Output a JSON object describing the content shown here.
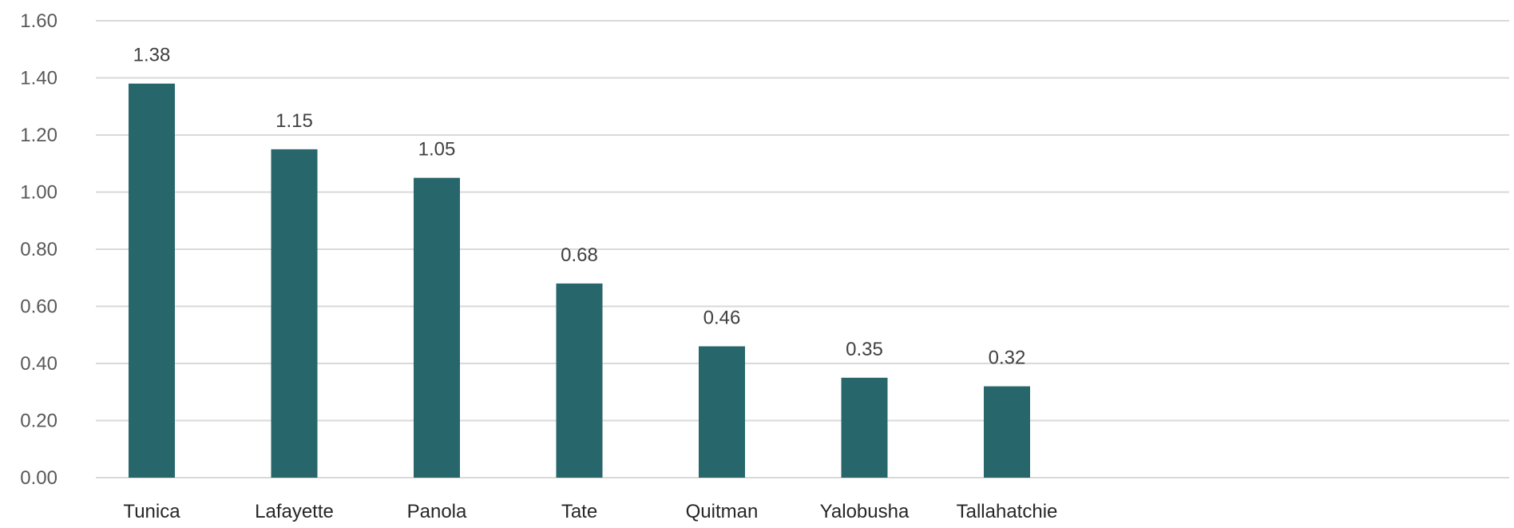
{
  "chart_data": {
    "type": "bar",
    "title": "",
    "xlabel": "",
    "ylabel": "",
    "categories": [
      "Tunica",
      "Lafayette",
      "Panola",
      "Tate",
      "Quitman",
      "Yalobusha",
      "Tallahatchie"
    ],
    "values": [
      1.38,
      1.15,
      1.05,
      0.68,
      0.46,
      0.35,
      0.32
    ],
    "data_labels": [
      "1.38",
      "1.15",
      "1.05",
      "0.68",
      "0.46",
      "0.35",
      "0.32"
    ],
    "ylim": [
      0,
      1.6
    ],
    "yticks": [
      0,
      0.2,
      0.4,
      0.6,
      0.8,
      1.0,
      1.2,
      1.4,
      1.6
    ],
    "ytick_labels": [
      "0.00",
      "0.20",
      "0.40",
      "0.60",
      "0.80",
      "1.00",
      "1.20",
      "1.40",
      "1.60"
    ],
    "grid": true,
    "legend": "none",
    "bar_color": "#27666b"
  }
}
